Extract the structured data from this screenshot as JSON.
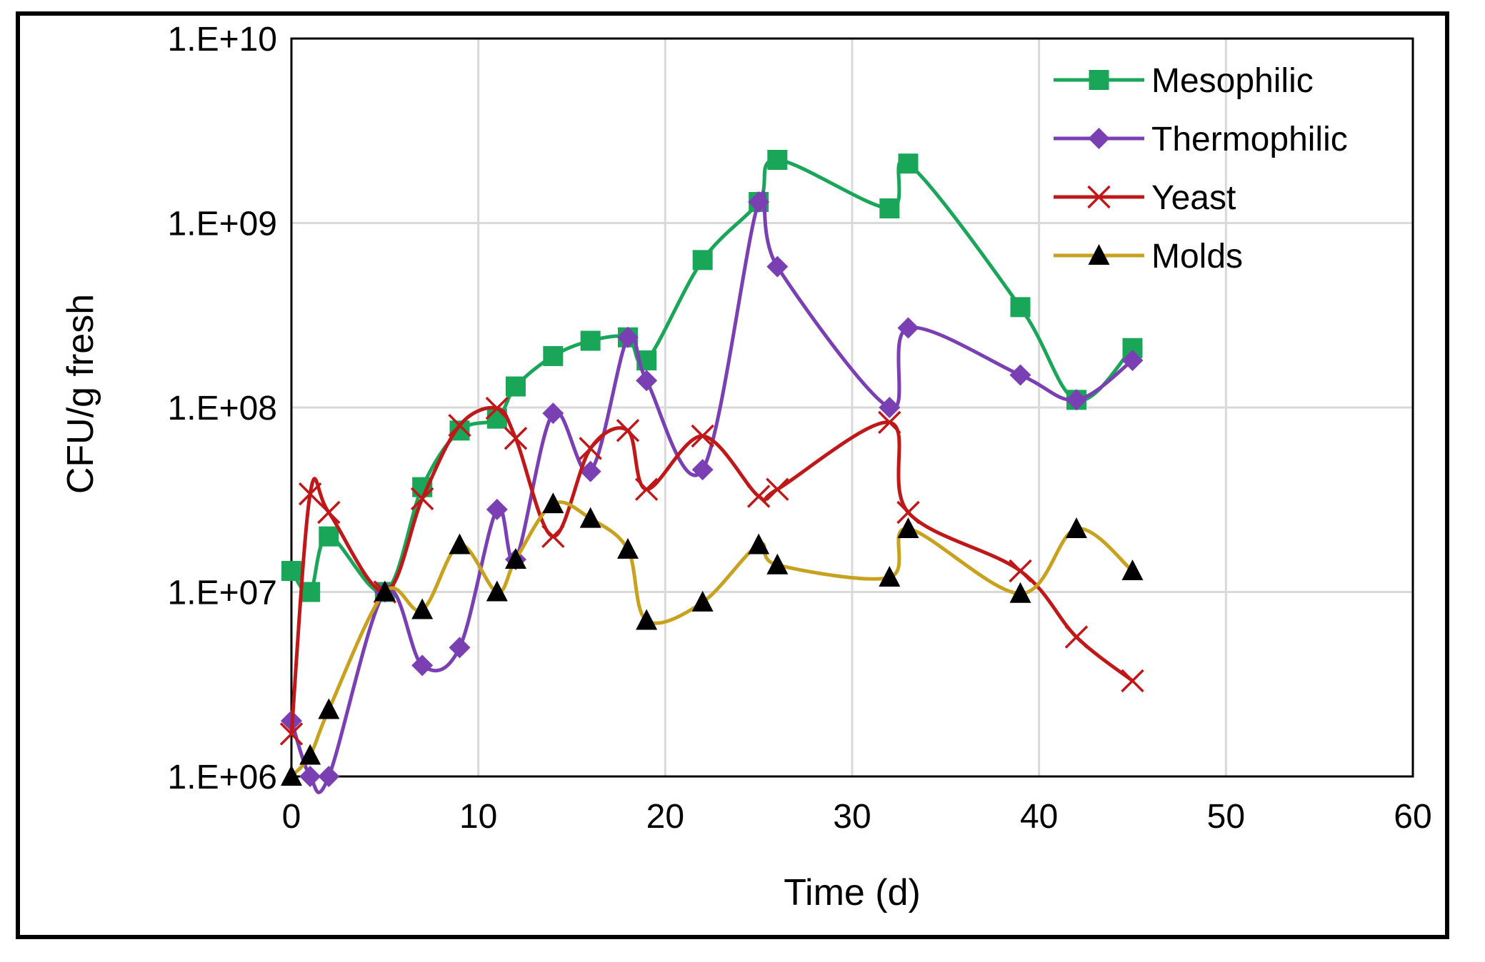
{
  "chart_data": {
    "type": "line",
    "title": "",
    "xlabel": "Time (d)",
    "ylabel": "CFU/g fresh",
    "xlim": [
      0,
      60
    ],
    "ylim": [
      1000000,
      10000000000
    ],
    "yscale": "log",
    "grid": true,
    "legend_position": "top-right",
    "x_ticks": [
      "0",
      "10",
      "20",
      "30",
      "40",
      "50",
      "60"
    ],
    "y_ticks": [
      "1.E+06",
      "1.E+07",
      "1.E+08",
      "1.E+09",
      "1.E+10"
    ],
    "series": [
      {
        "name": "Mesophilic",
        "color": "#1aa659",
        "marker": "square",
        "x": [
          0,
          1,
          2,
          5,
          7,
          9,
          11,
          12,
          14,
          16,
          18,
          19,
          22,
          25,
          26,
          32,
          33,
          39,
          42,
          45
        ],
        "values": [
          13000000,
          10000000,
          20000000,
          10000000,
          37000000,
          75000000,
          87000000,
          130000000,
          190000000,
          230000000,
          240000000,
          180000000,
          630000000,
          1300000000,
          2200000000,
          1200000000,
          2100000000,
          350000000,
          110000000,
          210000000
        ]
      },
      {
        "name": "Thermophilic",
        "color": "#7a3fb2",
        "marker": "diamond",
        "x": [
          0,
          1,
          2,
          5,
          7,
          9,
          11,
          12,
          14,
          16,
          18,
          19,
          22,
          25,
          26,
          32,
          33,
          39,
          42,
          45
        ],
        "values": [
          2000000,
          1000000,
          1000000,
          10000000,
          4000000,
          5000000,
          28000000,
          15000000,
          93000000,
          45000000,
          240000000,
          140000000,
          46000000,
          1300000000,
          580000000,
          100000000,
          270000000,
          150000000,
          110000000,
          180000000
        ]
      },
      {
        "name": "Yeast",
        "color": "#c01818",
        "marker": "x",
        "x": [
          0,
          1,
          2,
          5,
          7,
          9,
          11,
          12,
          14,
          16,
          18,
          19,
          22,
          25,
          26,
          32,
          33,
          39,
          42,
          45
        ],
        "values": [
          1700000,
          34000000,
          27000000,
          10000000,
          32000000,
          80000000,
          99000000,
          68000000,
          20000000,
          60000000,
          75000000,
          36000000,
          70000000,
          33000000,
          36000000,
          83000000,
          27000000,
          13000000,
          5700000,
          3300000
        ]
      },
      {
        "name": "Molds",
        "color": "#c8a21e",
        "marker": "triangle",
        "marker_color": "#000000",
        "x": [
          0,
          1,
          2,
          5,
          7,
          9,
          11,
          12,
          14,
          16,
          18,
          19,
          22,
          25,
          26,
          32,
          33,
          39,
          42,
          45
        ],
        "values": [
          1000000,
          1300000,
          2300000,
          10000000,
          8000000,
          18000000,
          10000000,
          15000000,
          30000000,
          25000000,
          17000000,
          7000000,
          8800000,
          18000000,
          14000000,
          12000000,
          22000000,
          9800000,
          22000000,
          13000000
        ]
      }
    ]
  }
}
